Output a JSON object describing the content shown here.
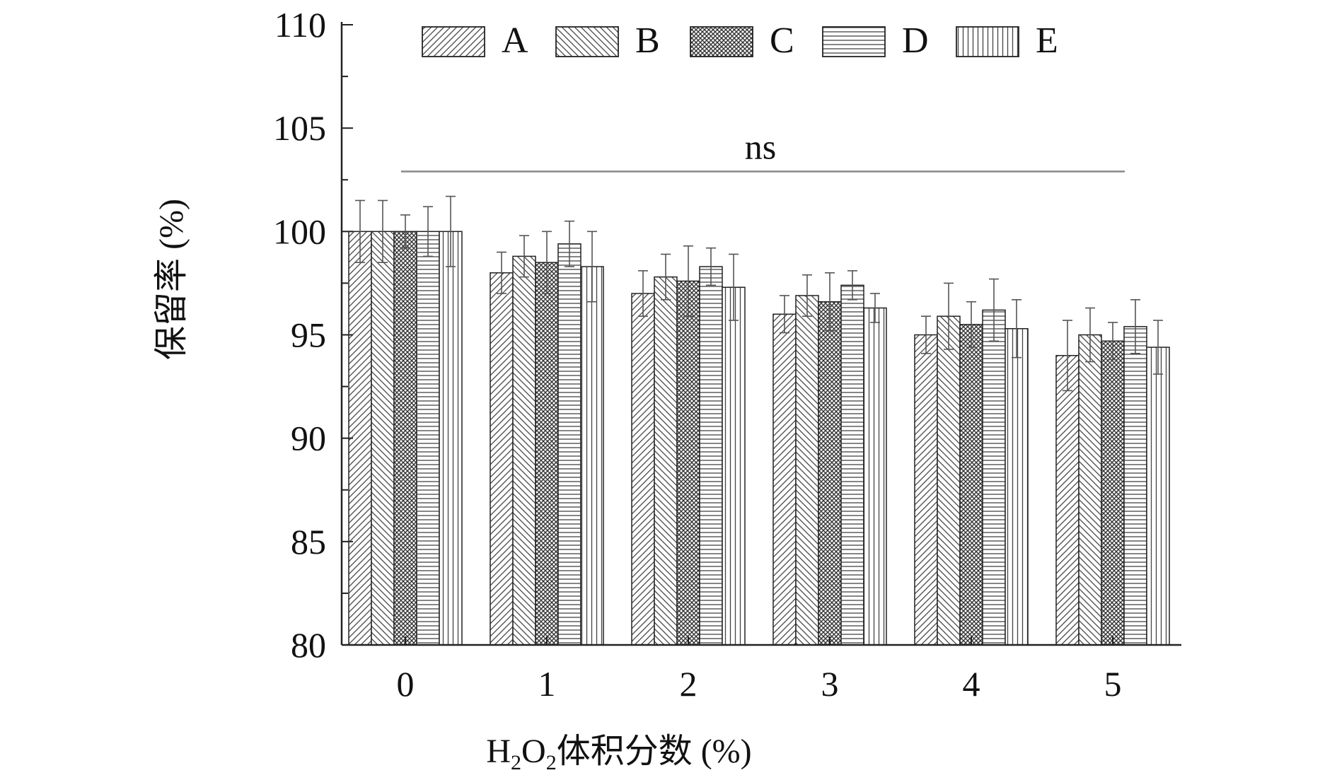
{
  "chart_data": {
    "type": "bar",
    "xlabel_parts": [
      "H",
      "2",
      "O",
      "2",
      "体积分数 (%)"
    ],
    "ylabel": "保留率 (%)",
    "ylim": [
      80,
      110
    ],
    "yticks": [
      "80",
      "85",
      "90",
      "95",
      "100",
      "105",
      "110"
    ],
    "categories": [
      "0",
      "1",
      "2",
      "3",
      "4",
      "5"
    ],
    "series": [
      {
        "name": "A",
        "values": [
          100.0,
          98.0,
          97.0,
          96.0,
          95.0,
          94.0
        ],
        "errors": [
          1.5,
          1.0,
          1.1,
          0.9,
          0.9,
          1.7
        ]
      },
      {
        "name": "B",
        "values": [
          100.0,
          98.8,
          97.8,
          96.9,
          95.9,
          95.0
        ],
        "errors": [
          1.5,
          1.0,
          1.1,
          1.0,
          1.6,
          1.3
        ]
      },
      {
        "name": "C",
        "values": [
          100.0,
          98.5,
          97.6,
          96.6,
          95.5,
          94.7
        ],
        "errors": [
          0.8,
          1.5,
          1.7,
          1.4,
          1.1,
          0.9
        ]
      },
      {
        "name": "D",
        "values": [
          100.0,
          99.4,
          98.3,
          97.4,
          96.2,
          95.4
        ],
        "errors": [
          1.2,
          1.1,
          0.9,
          0.7,
          1.5,
          1.3
        ]
      },
      {
        "name": "E",
        "values": [
          100.0,
          98.3,
          97.3,
          96.3,
          95.3,
          94.4
        ],
        "errors": [
          1.7,
          1.7,
          1.6,
          0.7,
          1.4,
          1.3
        ]
      }
    ],
    "annotation": "ns",
    "annotation_level": 102.9,
    "legend_position": "top",
    "colors": {
      "bar_fill": "#ffffff",
      "stroke": "#222222",
      "hatch": "#444444",
      "ns_line": "#888888"
    }
  }
}
